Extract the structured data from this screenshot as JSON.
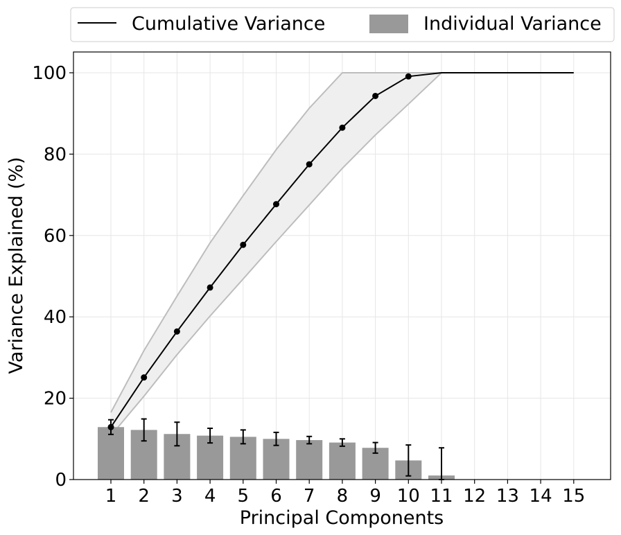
{
  "chart_data": {
    "type": "bar",
    "xlabel": "Principal Components",
    "ylabel": "Variance Explained (%)",
    "categories": [
      "1",
      "2",
      "3",
      "4",
      "5",
      "6",
      "7",
      "8",
      "9",
      "10",
      "11",
      "12",
      "13",
      "14",
      "15"
    ],
    "ylim": [
      0,
      105
    ],
    "yticks": [
      0,
      20,
      40,
      60,
      80,
      100
    ],
    "grid": true,
    "legend_placement": "top-center, outside plot",
    "series": [
      {
        "name": "Individual Variance",
        "kind": "bar",
        "color": "#999999",
        "values": [
          12.9,
          12.2,
          11.2,
          10.8,
          10.5,
          10.0,
          9.7,
          9.1,
          7.8,
          4.7,
          1.0,
          0,
          0,
          0,
          0
        ],
        "error": [
          1.8,
          2.7,
          2.9,
          1.8,
          1.7,
          1.6,
          0.9,
          0.9,
          1.3,
          3.8,
          6.8,
          0,
          0,
          0,
          0
        ]
      },
      {
        "name": "Cumulative Variance",
        "kind": "line",
        "color": "#000000",
        "values": [
          12.9,
          25.1,
          36.4,
          47.2,
          57.7,
          67.7,
          77.5,
          86.5,
          94.3,
          99.1,
          100,
          100,
          100,
          100,
          100
        ],
        "marker_count": 10,
        "band_upper": [
          16.5,
          31.7,
          45.1,
          58.2,
          69.8,
          81.1,
          91.3,
          100,
          100,
          100,
          100
        ],
        "band_lower": [
          10.8,
          20.5,
          30.7,
          40.2,
          49.3,
          58.5,
          67.5,
          76.5,
          84.7,
          92.3,
          100
        ],
        "band_color": "#bdbdbd"
      }
    ]
  }
}
